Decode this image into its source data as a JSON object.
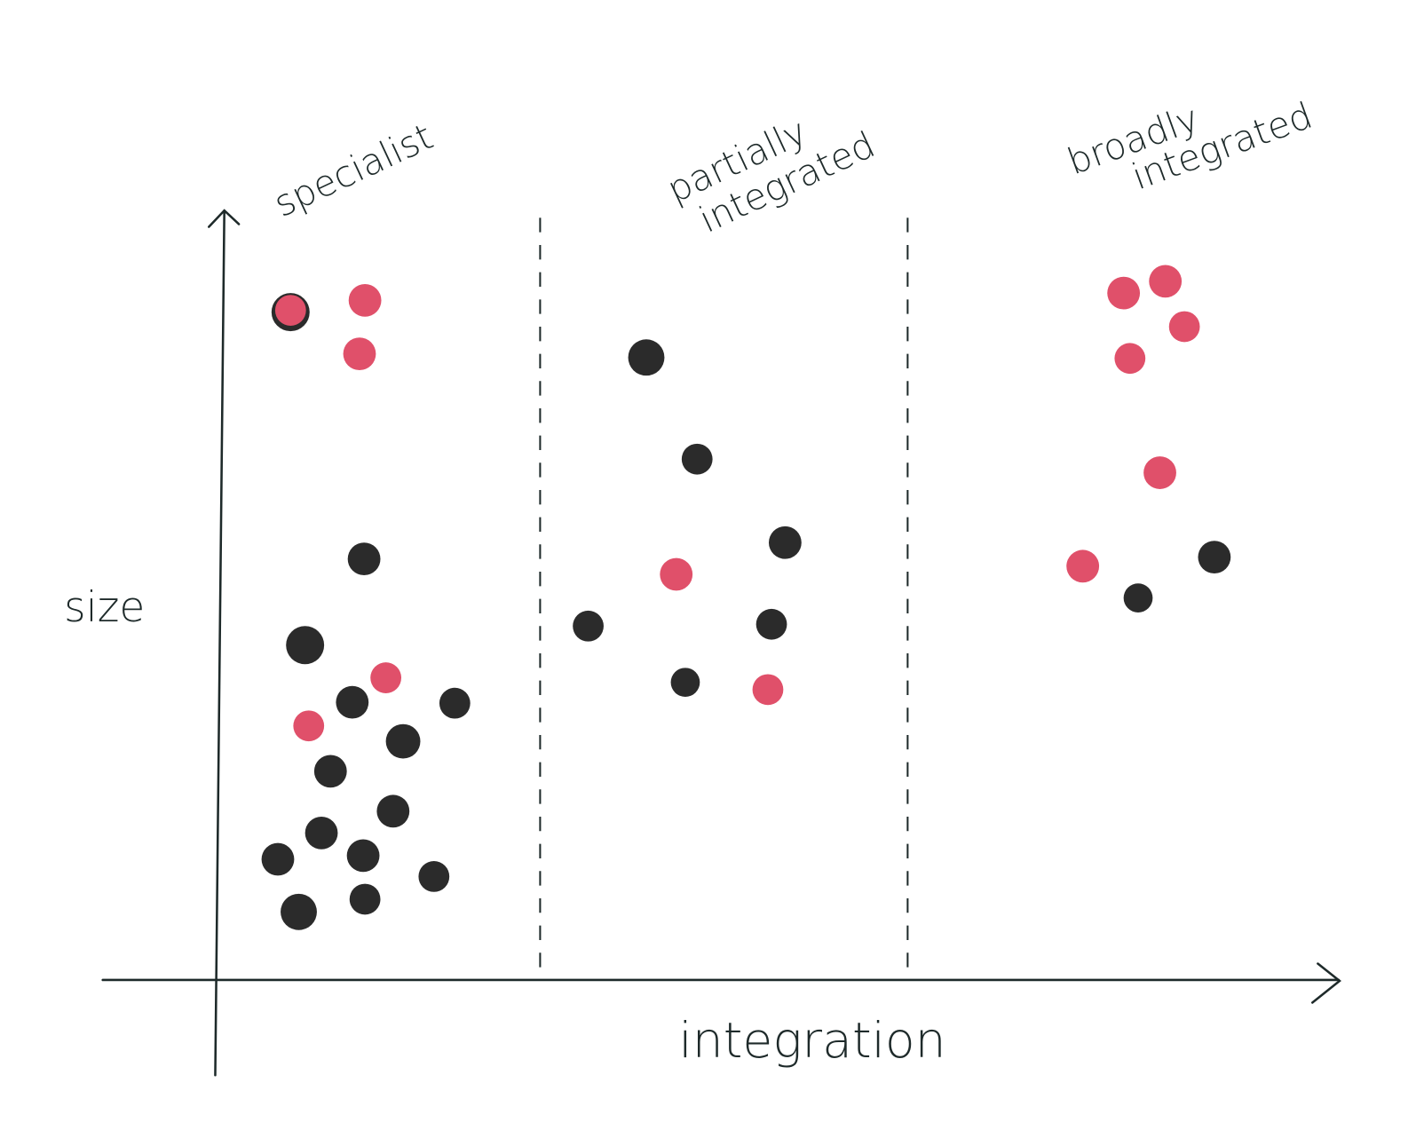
{
  "axes": {
    "x": "integration",
    "y": "size"
  },
  "zones": [
    {
      "lines": [
        "specialist"
      ]
    },
    {
      "lines": [
        "partially",
        "integrated"
      ]
    },
    {
      "lines": [
        "broadly",
        "integrated"
      ]
    }
  ]
}
